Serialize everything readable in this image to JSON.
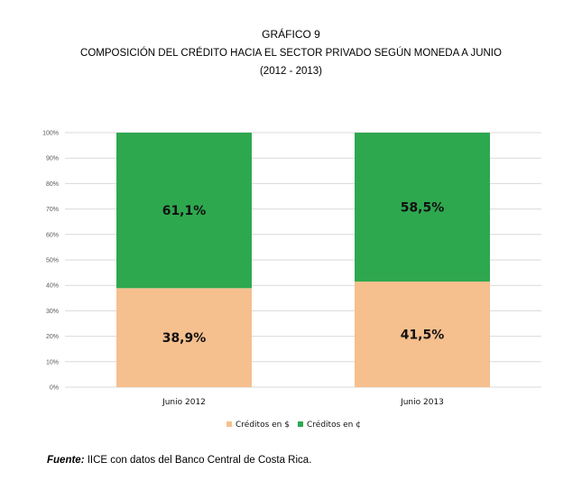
{
  "header": {
    "line1": "GRÁFICO 9",
    "line2": "COMPOSICIÓN DEL CRÉDITO HACIA EL SECTOR PRIVADO SEGÚN MONEDA A JUNIO",
    "line3": "(2012 - 2013)"
  },
  "chart_data": {
    "type": "bar",
    "stacked": true,
    "categories": [
      "Junio 2012",
      "Junio 2013"
    ],
    "series": [
      {
        "name": "Créditos en $",
        "values": [
          38.9,
          41.5
        ],
        "labels": [
          "38,9%",
          "41,5%"
        ],
        "color": "#f6bf8e"
      },
      {
        "name": "Créditos en ¢",
        "values": [
          61.1,
          58.5
        ],
        "labels": [
          "61,1%",
          "58,5%"
        ],
        "color": "#2ea84f"
      }
    ],
    "ylim": [
      0,
      100
    ],
    "yticks": [
      "0%",
      "10%",
      "20%",
      "30%",
      "40%",
      "50%",
      "60%",
      "70%",
      "80%",
      "90%",
      "100%"
    ],
    "grid": true,
    "legend_position": "bottom"
  },
  "source": {
    "label": "Fuente:",
    "text": " IICE con datos del Banco Central de Costa Rica."
  }
}
